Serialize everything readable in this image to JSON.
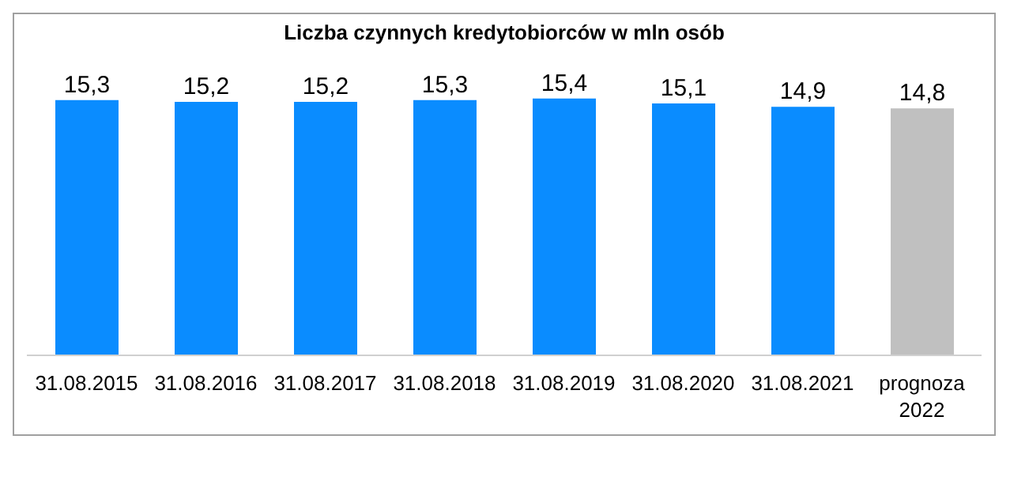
{
  "chart_data": {
    "type": "bar",
    "title": "Liczba czynnych kredytobiorców w mln osób",
    "categories": [
      "31.08.2015",
      "31.08.2016",
      "31.08.2017",
      "31.08.2018",
      "31.08.2019",
      "31.08.2020",
      "31.08.2021",
      "prognoza 2022"
    ],
    "values": [
      15.3,
      15.2,
      15.2,
      15.3,
      15.4,
      15.1,
      14.9,
      14.8
    ],
    "colors": [
      "#0a8cff",
      "#0a8cff",
      "#0a8cff",
      "#0a8cff",
      "#0a8cff",
      "#0a8cff",
      "#0a8cff",
      "#c0c0c0"
    ],
    "value_labels": [
      "15,3",
      "15,2",
      "15,2",
      "15,3",
      "15,4",
      "15,1",
      "14,9",
      "14,8"
    ],
    "grid": false,
    "legend": false
  }
}
